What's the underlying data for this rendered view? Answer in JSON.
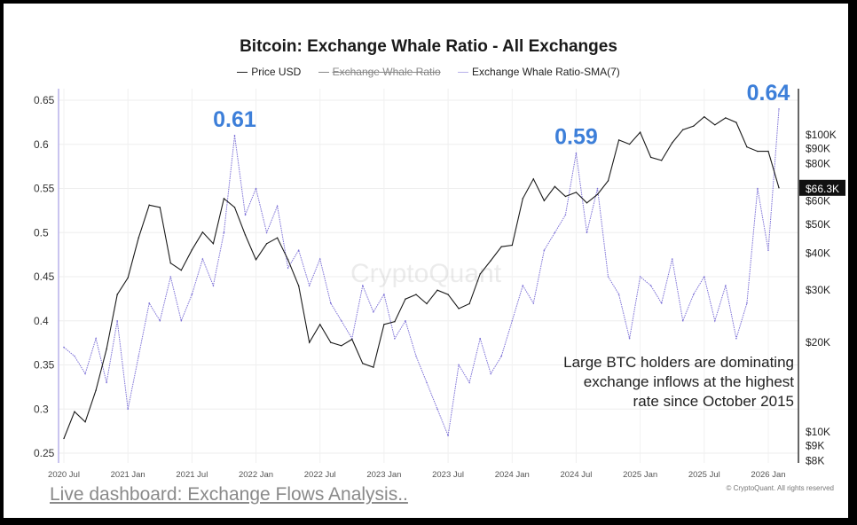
{
  "chart_data": {
    "type": "line",
    "title": "Bitcoin: Exchange Whale Ratio - All Exchanges",
    "legend": [
      {
        "name": "Price USD",
        "color": "#1a1a1a",
        "hidden": false
      },
      {
        "name": "Exchange Whale Ratio",
        "color": "#888888",
        "hidden": true
      },
      {
        "name": "Exchange Whale Ratio-SMA(7)",
        "color": "#7b6fd6",
        "hidden": false
      }
    ],
    "legend_placement": "top-center",
    "x_ticks": [
      "2020 Jul",
      "2021 Jan",
      "2021 Jul",
      "2022 Jan",
      "2022 Jul",
      "2023 Jan",
      "2023 Jul",
      "2024 Jan",
      "2024 Jul",
      "2025 Jan",
      "2025 Jul",
      "2026 Jan"
    ],
    "y_left": {
      "ticks": [
        "0.25",
        "0.3",
        "0.35",
        "0.4",
        "0.45",
        "0.5",
        "0.55",
        "0.6",
        "0.65"
      ],
      "range": [
        0.25,
        0.65
      ]
    },
    "y_right": {
      "scale": "log",
      "ticks": [
        "$8K",
        "$9K",
        "$10K",
        "$20K",
        "$30K",
        "$40K",
        "$50K",
        "$60K",
        "$80K",
        "$90K",
        "$100K"
      ],
      "range_usd": [
        8000,
        140000
      ]
    },
    "grid": true,
    "x": [
      "2020-07",
      "2020-08",
      "2020-09",
      "2020-10",
      "2020-11",
      "2020-12",
      "2021-01",
      "2021-02",
      "2021-03",
      "2021-04",
      "2021-05",
      "2021-06",
      "2021-07",
      "2021-08",
      "2021-09",
      "2021-10",
      "2021-11",
      "2021-12",
      "2022-01",
      "2022-02",
      "2022-03",
      "2022-04",
      "2022-05",
      "2022-06",
      "2022-07",
      "2022-08",
      "2022-09",
      "2022-10",
      "2022-11",
      "2022-12",
      "2023-01",
      "2023-02",
      "2023-03",
      "2023-04",
      "2023-05",
      "2023-06",
      "2023-07",
      "2023-08",
      "2023-09",
      "2023-10",
      "2023-11",
      "2023-12",
      "2024-01",
      "2024-02",
      "2024-03",
      "2024-04",
      "2024-05",
      "2024-06",
      "2024-07",
      "2024-08",
      "2024-09",
      "2024-10",
      "2024-11",
      "2024-12",
      "2025-01",
      "2025-02",
      "2025-03",
      "2025-04",
      "2025-05",
      "2025-06",
      "2025-07",
      "2025-08",
      "2025-09",
      "2025-10",
      "2025-11",
      "2025-12",
      "2026-01",
      "2026-02"
    ],
    "series": [
      {
        "name": "Price USD",
        "axis": "right",
        "unit": "USD thousands",
        "values": [
          9.5,
          11.7,
          10.8,
          13.8,
          19,
          29,
          33,
          45,
          58,
          57,
          37,
          35,
          41,
          47,
          43,
          61,
          57,
          46,
          38,
          43,
          45,
          38,
          31,
          20,
          23,
          20,
          19.5,
          20.5,
          17,
          16.5,
          23,
          23.5,
          28,
          29,
          27,
          30,
          29,
          26,
          27,
          34,
          37.7,
          42,
          42.5,
          61,
          71,
          60,
          67,
          62,
          64,
          59,
          63,
          70,
          96,
          93,
          102,
          84,
          82,
          94,
          104,
          107,
          115,
          108,
          114,
          110,
          91,
          88,
          88,
          66.3
        ]
      },
      {
        "name": "Exchange Whale Ratio-SMA(7)",
        "axis": "left",
        "values": [
          0.37,
          0.36,
          0.34,
          0.38,
          0.33,
          0.4,
          0.3,
          0.36,
          0.42,
          0.4,
          0.45,
          0.4,
          0.43,
          0.47,
          0.44,
          0.5,
          0.61,
          0.52,
          0.55,
          0.5,
          0.53,
          0.46,
          0.48,
          0.44,
          0.47,
          0.42,
          0.4,
          0.38,
          0.44,
          0.41,
          0.43,
          0.38,
          0.4,
          0.36,
          0.33,
          0.3,
          0.27,
          0.35,
          0.33,
          0.38,
          0.34,
          0.36,
          0.4,
          0.44,
          0.42,
          0.48,
          0.5,
          0.52,
          0.59,
          0.5,
          0.55,
          0.45,
          0.43,
          0.38,
          0.45,
          0.44,
          0.42,
          0.47,
          0.4,
          0.43,
          0.45,
          0.4,
          0.44,
          0.38,
          0.42,
          0.55,
          0.48,
          0.64
        ]
      }
    ],
    "annotations": [
      {
        "text": "0.61",
        "date": "2021-11",
        "value": 0.61
      },
      {
        "text": "0.59",
        "date": "2024-07",
        "value": 0.59
      },
      {
        "text": "0.64",
        "date": "2026-02",
        "value": 0.64
      }
    ],
    "note": "Large BTC holders are dominating\nexchange inflows at the highest\nrate since October 2015",
    "current_price_label": "$66.3K",
    "watermark": "CryptoQuant"
  },
  "colors": {
    "accent": "#3d7fd9",
    "sma": "#7b6fd6",
    "price": "#1a1a1a"
  },
  "footer": {
    "link": "Live dashboard: Exchange Flows Analysis..",
    "copyright": "© CryptoQuant. All rights reserved"
  }
}
